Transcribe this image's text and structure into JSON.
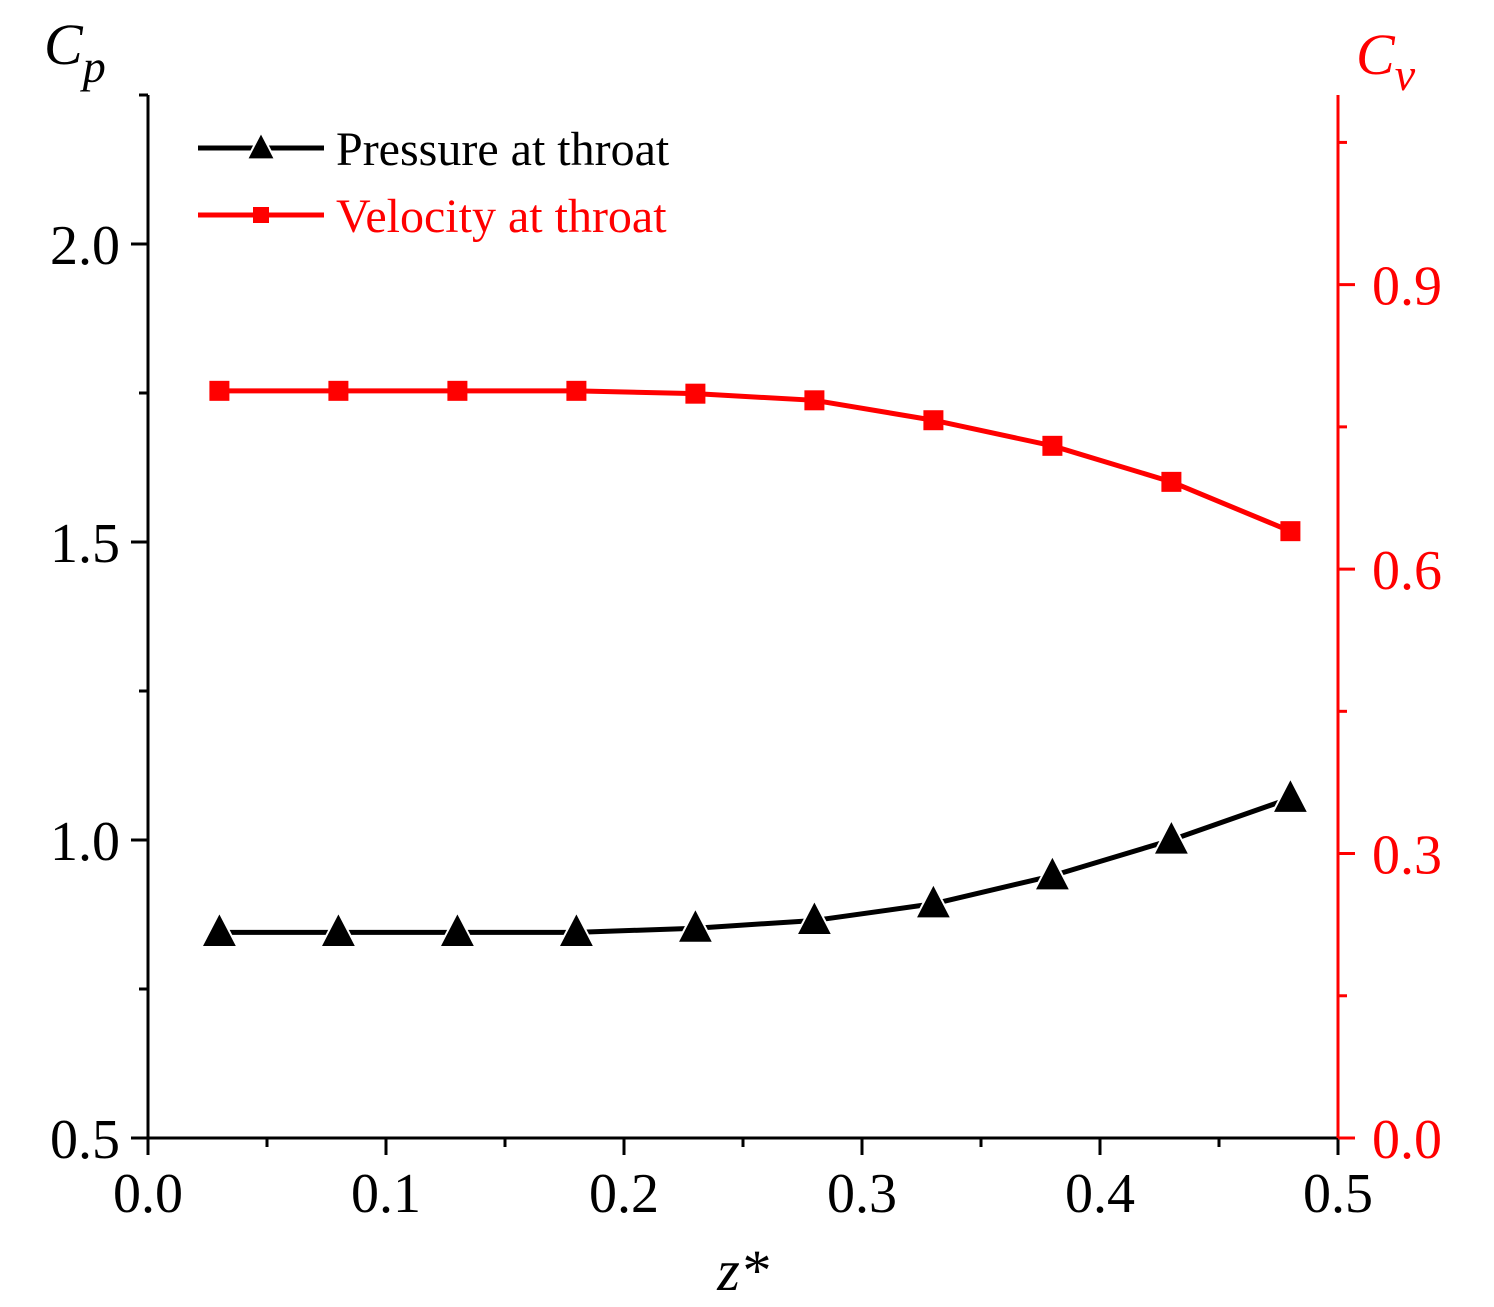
{
  "colors": {
    "left_axis": "#000000",
    "right_axis": "#ff0000",
    "pressure_series": "#000000",
    "velocity_series": "#ff0000",
    "background": "#ffffff"
  },
  "chart_data": {
    "type": "line",
    "title": "",
    "xlabel": "z*",
    "ylabel_left": {
      "main": "C",
      "sub": "p"
    },
    "ylabel_right": {
      "main": "C",
      "sub": "v"
    },
    "xlim": [
      0.0,
      0.5
    ],
    "ylim_left": [
      0.5,
      2.25
    ],
    "ylim_right": [
      0.0,
      1.1
    ],
    "x_ticks": [
      "0.0",
      "0.1",
      "0.2",
      "0.3",
      "0.4",
      "0.5"
    ],
    "y_left_ticks": [
      "0.5",
      "1.0",
      "1.5",
      "2.0"
    ],
    "y_right_ticks": [
      "0.0",
      "0.3",
      "0.6",
      "0.9"
    ],
    "grid": false,
    "legend_position": "top-left",
    "x": [
      0.03,
      0.08,
      0.13,
      0.18,
      0.23,
      0.28,
      0.33,
      0.38,
      0.43,
      0.48
    ],
    "series": [
      {
        "name": "Pressure at throat",
        "axis": "left",
        "marker": "triangle",
        "values": [
          0.845,
          0.845,
          0.845,
          0.845,
          0.852,
          0.865,
          0.893,
          0.94,
          1.0,
          1.07
        ]
      },
      {
        "name": "Velocity at throat",
        "axis": "right",
        "marker": "square",
        "values": [
          0.788,
          0.788,
          0.788,
          0.788,
          0.785,
          0.778,
          0.757,
          0.73,
          0.692,
          0.64
        ]
      }
    ]
  }
}
